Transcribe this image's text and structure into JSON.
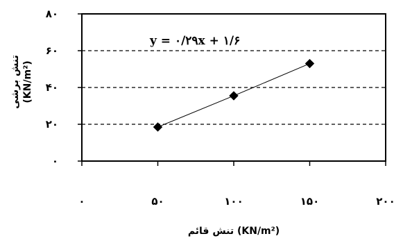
{
  "chart_data": {
    "type": "scatter",
    "title": "",
    "xlabel": "تنش قائم (KN/m²)",
    "ylabel_line1": "تنش برشی",
    "ylabel_line2": "(KN/m²)",
    "xlim": [
      0,
      200
    ],
    "ylim": [
      0,
      80
    ],
    "x_ticks": [
      0,
      50,
      100,
      150,
      200
    ],
    "x_tick_labels": [
      "۰",
      "۵۰",
      "۱۰۰",
      "۱۵۰",
      "۲۰۰"
    ],
    "y_ticks": [
      0,
      20,
      40,
      60,
      80
    ],
    "y_tick_labels": [
      "۰",
      "۲۰",
      "۴۰",
      "۶۰",
      "۸۰"
    ],
    "grid": "horizontal-dashed",
    "series": [
      {
        "points": [
          {
            "x": 50,
            "y": 18.5
          },
          {
            "x": 100,
            "y": 35.5
          },
          {
            "x": 150,
            "y": 53
          }
        ]
      }
    ],
    "trendline": {
      "equation": "y = ۰/۲۹x + ۱/۶",
      "slope": 0.29,
      "intercept": 1.6
    },
    "marker": "diamond",
    "marker_color": "#000000"
  }
}
